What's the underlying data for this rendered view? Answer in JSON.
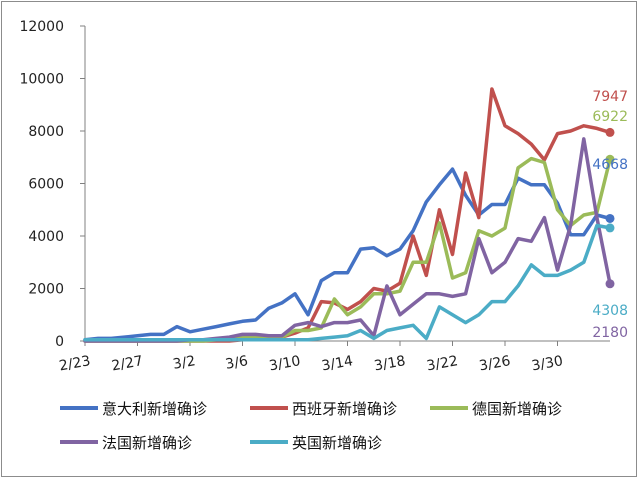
{
  "chart_data": {
    "type": "line",
    "title": "",
    "xlabel": "",
    "ylabel": "",
    "ylim": [
      0,
      12000
    ],
    "yticks": [
      0,
      2000,
      4000,
      6000,
      8000,
      10000,
      12000
    ],
    "ytick_labels": [
      "0",
      "2000",
      "4000",
      "6000",
      "8000",
      "10000",
      "12000"
    ],
    "x": [
      "2/23",
      "2/24",
      "2/25",
      "2/26",
      "2/27",
      "2/28",
      "2/29",
      "3/1",
      "3/2",
      "3/3",
      "3/4",
      "3/5",
      "3/6",
      "3/7",
      "3/8",
      "3/9",
      "3/10",
      "3/11",
      "3/12",
      "3/13",
      "3/14",
      "3/15",
      "3/16",
      "3/17",
      "3/18",
      "3/19",
      "3/20",
      "3/21",
      "3/22",
      "3/23",
      "3/24",
      "3/25",
      "3/26",
      "3/27",
      "3/28",
      "3/29",
      "3/30",
      "3/31",
      "4/1",
      "4/2",
      "4/3"
    ],
    "xtick_labels": [
      "2/23",
      "2/27",
      "3/2",
      "3/6",
      "3/10",
      "3/14",
      "3/18",
      "3/22",
      "3/26",
      "3/30"
    ],
    "xtick_indices": [
      0,
      4,
      8,
      12,
      16,
      20,
      24,
      28,
      32,
      36
    ],
    "grid": false,
    "legend_position": "bottom",
    "series": [
      {
        "name": "意大利新增确诊",
        "color": "#4472c4",
        "end_label": "4668",
        "values": [
          50,
          100,
          100,
          150,
          200,
          250,
          250,
          550,
          350,
          450,
          550,
          650,
          750,
          800,
          1250,
          1450,
          1800,
          1000,
          2300,
          2600,
          2600,
          3500,
          3550,
          3250,
          3500,
          4200,
          5300,
          5950,
          6550,
          5550,
          4800,
          5200,
          5200,
          6200,
          5950,
          5950,
          5250,
          4050,
          4050,
          4800,
          4668
        ]
      },
      {
        "name": "西班牙新增确诊",
        "color": "#c0504d",
        "end_label": "7947",
        "values": [
          0,
          0,
          0,
          0,
          0,
          0,
          0,
          0,
          0,
          0,
          0,
          0,
          50,
          50,
          100,
          150,
          300,
          500,
          1500,
          1450,
          1200,
          1500,
          2000,
          1900,
          2200,
          4000,
          2500,
          5000,
          3300,
          6400,
          4700,
          9600,
          8200,
          7900,
          7500,
          6900,
          7900,
          8000,
          8200,
          8100,
          7947
        ]
      },
      {
        "name": "德国新增确诊",
        "color": "#9bbb59",
        "end_label": "6922",
        "values": [
          0,
          0,
          0,
          0,
          0,
          0,
          0,
          0,
          0,
          0,
          50,
          100,
          150,
          150,
          150,
          150,
          400,
          400,
          500,
          1600,
          1000,
          1300,
          1800,
          1800,
          1900,
          3000,
          3000,
          4500,
          2400,
          2600,
          4200,
          4000,
          4300,
          6600,
          6950,
          6800,
          5000,
          4400,
          4800,
          4900,
          6922
        ]
      },
      {
        "name": "法国新增确诊",
        "color": "#8064a2",
        "end_label": "2180",
        "values": [
          0,
          0,
          0,
          0,
          0,
          0,
          0,
          0,
          50,
          50,
          100,
          150,
          250,
          250,
          200,
          200,
          600,
          700,
          550,
          700,
          700,
          800,
          200,
          2100,
          1000,
          1400,
          1800,
          1800,
          1700,
          1800,
          3900,
          2600,
          3000,
          3900,
          3800,
          4700,
          2700,
          4400,
          7700,
          4700,
          2180
        ]
      },
      {
        "name": "英国新增确诊",
        "color": "#4bacc6",
        "end_label": "4308",
        "values": [
          50,
          50,
          50,
          50,
          50,
          50,
          50,
          50,
          50,
          50,
          50,
          50,
          50,
          50,
          50,
          50,
          50,
          50,
          100,
          150,
          200,
          400,
          100,
          400,
          500,
          600,
          100,
          1300,
          1000,
          700,
          1000,
          1500,
          1500,
          2100,
          2900,
          2500,
          2500,
          2700,
          3000,
          4400,
          4308
        ]
      }
    ]
  }
}
